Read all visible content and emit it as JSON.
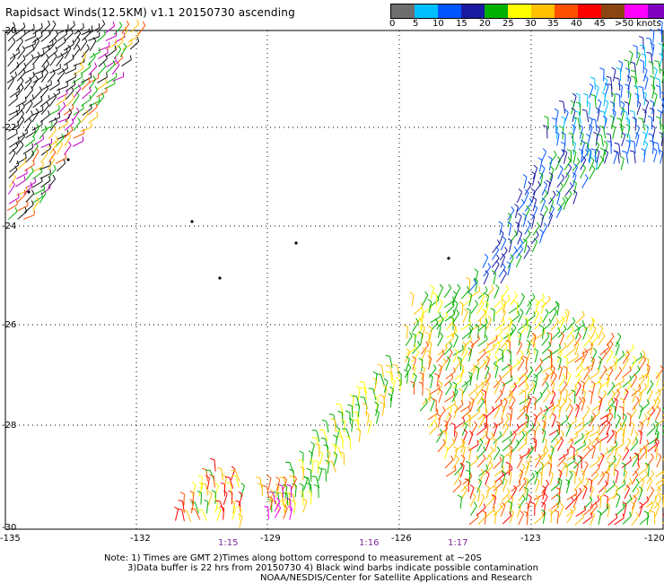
{
  "title": "Rapidsact Winds(12.5KM) v1.1 20150730 ascending",
  "scale": {
    "labels": [
      "0",
      "5",
      "10",
      "15",
      "20",
      "25",
      "30",
      "35",
      "40",
      "45",
      ">50 knots"
    ],
    "colors": [
      "#6e6e6e",
      "#00bfff",
      "#0055ff",
      "#1a1aa0",
      "#00b000",
      "#ffff00",
      "#ffc000",
      "#ff5000",
      "#ff0000",
      "#8b4513",
      "#ff00ff",
      "#8000c0"
    ]
  },
  "axes": {
    "lon_labels": [
      "-135",
      "-132",
      "-129",
      "-126",
      "-123",
      "-120"
    ],
    "lat_labels": [
      "-20",
      "-22",
      "-24",
      "-26",
      "-28",
      "-30"
    ]
  },
  "times": [
    "1:15",
    "1:16",
    "1:17"
  ],
  "notes": {
    "line1": "Note: 1) Times are GMT 2)Times along bottom correspond to measurement at ~20S",
    "line2": "3)Data buffer is 22 hrs from 20150730 4) Black wind barbs indicate possible contamination",
    "line3": "NOAA/NESDIS/Center for Satellite Applications and Research"
  }
}
